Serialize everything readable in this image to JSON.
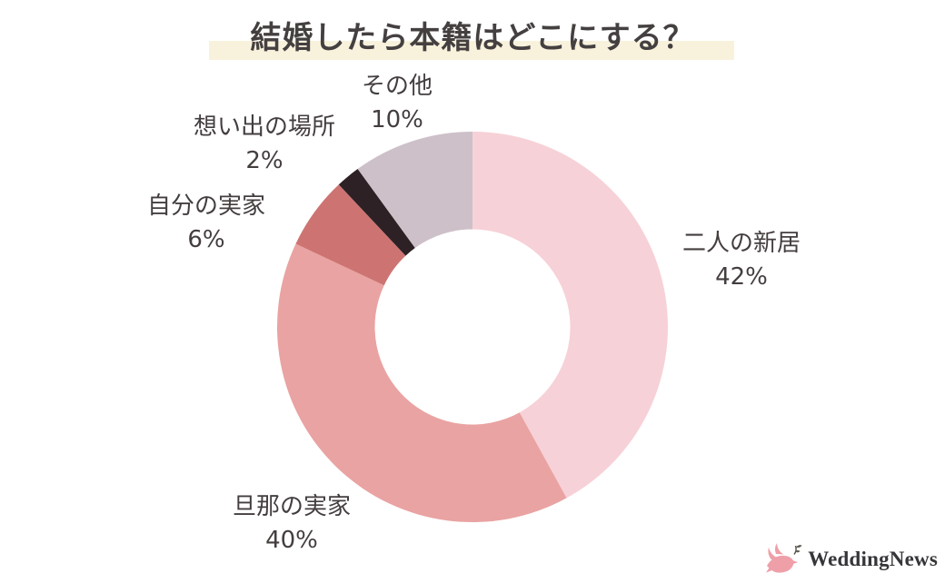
{
  "title": "結婚したら本籍はどこにする？",
  "colors": {
    "background": "#ffffff",
    "title_text": "#454040",
    "title_highlight": "#f8f2dd",
    "label_text": "#443e3e",
    "logo_bird_pink": "#ef9fa8",
    "logo_sprig": "#5c5a4e",
    "logo_text": "#36363a"
  },
  "chart_data": {
    "type": "pie",
    "subtype": "donut",
    "title": "結婚したら本籍はどこにする？",
    "start_angle_deg": 0,
    "direction": "clockwise",
    "inner_radius_ratio": 0.5,
    "grid": false,
    "legend_position": "labels-around-chart",
    "segments": [
      {
        "label": "二人の新居",
        "value": 42,
        "pct_label": "42%",
        "color": "#f7d1d8"
      },
      {
        "label": "旦那の実家",
        "value": 40,
        "pct_label": "40%",
        "color": "#e9a3a2"
      },
      {
        "label": "自分の実家",
        "value": 6,
        "pct_label": "6%",
        "color": "#cd7472"
      },
      {
        "label": "想い出の場所",
        "value": 2,
        "pct_label": "2%",
        "color": "#2d2125"
      },
      {
        "label": "その他",
        "value": 10,
        "pct_label": "10%",
        "color": "#cdc0c8"
      }
    ]
  },
  "logo": {
    "brand": "WeddingNews",
    "icon": "dove-with-sprig-icon"
  }
}
